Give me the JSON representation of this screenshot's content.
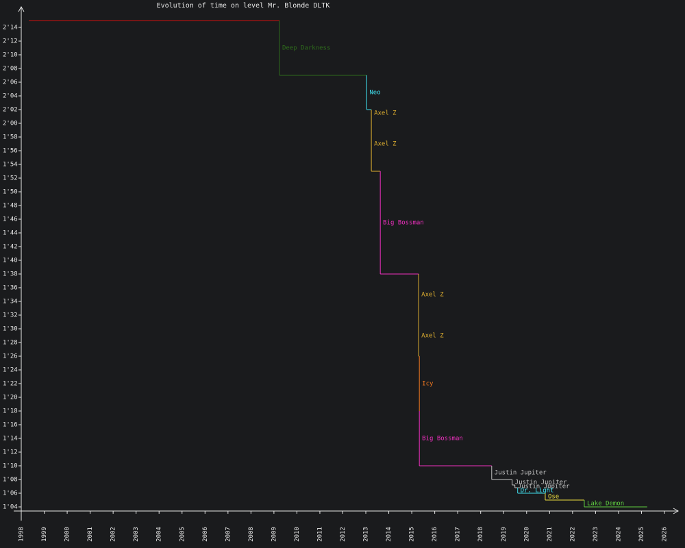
{
  "chart_data": {
    "type": "step",
    "title": "Evolution of time on level Mr. Blonde DLTK",
    "xlim": [
      1998,
      2026
    ],
    "xticks": [
      1998,
      1999,
      2000,
      2001,
      2002,
      2003,
      2004,
      2005,
      2006,
      2007,
      2008,
      2009,
      2010,
      2011,
      2012,
      2013,
      2014,
      2015,
      2016,
      2017,
      2018,
      2019,
      2020,
      2021,
      2022,
      2023,
      2024,
      2025,
      2026
    ],
    "ylim": [
      64,
      134
    ],
    "yticks": [
      {
        "value": 64,
        "label": "1'04"
      },
      {
        "value": 66,
        "label": "1'06"
      },
      {
        "value": 68,
        "label": "1'08"
      },
      {
        "value": 70,
        "label": "1'10"
      },
      {
        "value": 72,
        "label": "1'12"
      },
      {
        "value": 74,
        "label": "1'14"
      },
      {
        "value": 76,
        "label": "1'16"
      },
      {
        "value": 78,
        "label": "1'18"
      },
      {
        "value": 80,
        "label": "1'20"
      },
      {
        "value": 82,
        "label": "1'22"
      },
      {
        "value": 84,
        "label": "1'24"
      },
      {
        "value": 86,
        "label": "1'26"
      },
      {
        "value": 88,
        "label": "1'28"
      },
      {
        "value": 90,
        "label": "1'30"
      },
      {
        "value": 92,
        "label": "1'32"
      },
      {
        "value": 94,
        "label": "1'34"
      },
      {
        "value": 96,
        "label": "1'36"
      },
      {
        "value": 98,
        "label": "1'38"
      },
      {
        "value": 100,
        "label": "1'40"
      },
      {
        "value": 102,
        "label": "1'42"
      },
      {
        "value": 104,
        "label": "1'44"
      },
      {
        "value": 106,
        "label": "1'46"
      },
      {
        "value": 108,
        "label": "1'48"
      },
      {
        "value": 110,
        "label": "1'50"
      },
      {
        "value": 112,
        "label": "1'52"
      },
      {
        "value": 114,
        "label": "1'54"
      },
      {
        "value": 116,
        "label": "1'56"
      },
      {
        "value": 118,
        "label": "1'58"
      },
      {
        "value": 120,
        "label": "2'00"
      },
      {
        "value": 122,
        "label": "2'02"
      },
      {
        "value": 124,
        "label": "2'04"
      },
      {
        "value": 126,
        "label": "2'06"
      },
      {
        "value": 128,
        "label": "2'08"
      },
      {
        "value": 130,
        "label": "2'10"
      },
      {
        "value": 132,
        "label": "2'12"
      },
      {
        "value": 134,
        "label": "2'14"
      }
    ],
    "series": [
      {
        "name": null,
        "color": "#d01010",
        "x": [
          1998.33,
          2009.24
        ],
        "values": [
          135,
          135
        ]
      },
      {
        "name": "Deep Darkness",
        "color": "#2e6b1c",
        "x": [
          2009.24,
          2013.04
        ],
        "values": [
          127,
          127
        ]
      },
      {
        "name": "Neo",
        "color": "#40e0f0",
        "x": [
          2013.04,
          2013.24
        ],
        "values": [
          122,
          122
        ]
      },
      {
        "name": "Axel Z",
        "color": "#e0b030",
        "x": [
          2013.24,
          2013.24
        ],
        "values": [
          121,
          121
        ]
      },
      {
        "name": "Axel Z",
        "color": "#e0b030",
        "x": [
          2013.24,
          2013.63
        ],
        "values": [
          113,
          113
        ]
      },
      {
        "name": "Big Bossman",
        "color": "#f030c0",
        "x": [
          2013.63,
          2015.3
        ],
        "values": [
          98,
          98
        ]
      },
      {
        "name": "Axel Z",
        "color": "#e0b030",
        "x": [
          2015.3,
          2015.3
        ],
        "values": [
          92,
          92
        ]
      },
      {
        "name": "Axel Z",
        "color": "#e0b030",
        "x": [
          2015.3,
          2015.33
        ],
        "values": [
          86,
          86
        ]
      },
      {
        "name": "Icy",
        "color": "#f07820",
        "x": [
          2015.33,
          2015.33
        ],
        "values": [
          78,
          78
        ]
      },
      {
        "name": "Big Bossman",
        "color": "#f030c0",
        "x": [
          2015.33,
          2018.48
        ],
        "values": [
          70,
          70
        ]
      },
      {
        "name": "Justin Jupiter",
        "color": "#c8c8c8",
        "x": [
          2018.48,
          2019.37
        ],
        "values": [
          68,
          68
        ]
      },
      {
        "name": "Justin Jupiter",
        "color": "#c8c8c8",
        "x": [
          2019.37,
          2019.49
        ],
        "values": [
          67.2,
          67.2
        ]
      },
      {
        "name": "Justin Jupiter",
        "color": "#c8c8c8",
        "x": [
          2019.49,
          2019.61
        ],
        "values": [
          66.8,
          66.8
        ]
      },
      {
        "name": "Dr. Light",
        "color": "#40e0f0",
        "x": [
          2019.61,
          2020.81
        ],
        "values": [
          66,
          66
        ]
      },
      {
        "name": "Ose",
        "color": "#f0e040",
        "x": [
          2020.81,
          2022.51
        ],
        "values": [
          65,
          65
        ]
      },
      {
        "name": "Lake Demon",
        "color": "#60d040",
        "x": [
          2022.51,
          2025.25
        ],
        "values": [
          64,
          64
        ]
      }
    ]
  }
}
